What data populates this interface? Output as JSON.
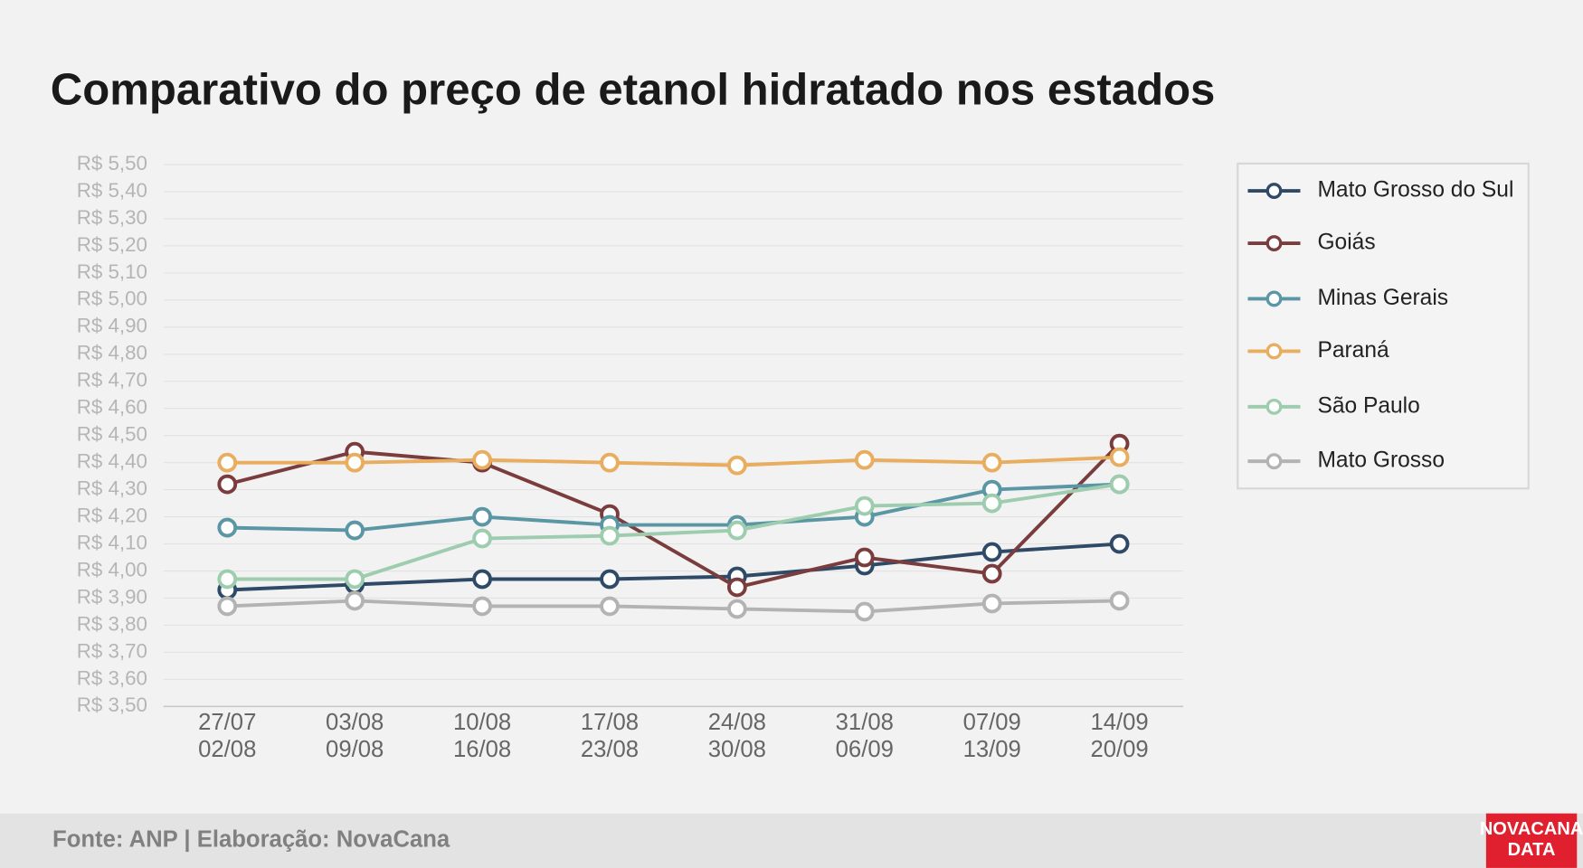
{
  "chart_data": {
    "type": "line",
    "title": "Comparativo do preço de etanol hidratado nos estados",
    "categories": [
      [
        "27/07",
        "02/08"
      ],
      [
        "03/08",
        "09/08"
      ],
      [
        "10/08",
        "16/08"
      ],
      [
        "17/08",
        "23/08"
      ],
      [
        "24/08",
        "30/08"
      ],
      [
        "31/08",
        "06/09"
      ],
      [
        "07/09",
        "13/09"
      ],
      [
        "14/09",
        "20/09"
      ]
    ],
    "series": [
      {
        "name": "Mato Grosso do Sul",
        "color": "#2f4a66",
        "values": [
          3.93,
          3.95,
          3.97,
          3.97,
          3.98,
          4.02,
          4.07,
          4.1
        ]
      },
      {
        "name": "Goiás",
        "color": "#7a3c3c",
        "values": [
          4.32,
          4.44,
          4.4,
          4.21,
          3.94,
          4.05,
          3.99,
          4.47
        ]
      },
      {
        "name": "Minas Gerais",
        "color": "#5b96a5",
        "values": [
          4.16,
          4.15,
          4.2,
          4.17,
          4.17,
          4.2,
          4.3,
          4.32
        ]
      },
      {
        "name": "Paraná",
        "color": "#e8ad5e",
        "values": [
          4.4,
          4.4,
          4.41,
          4.4,
          4.39,
          4.41,
          4.4,
          4.42
        ]
      },
      {
        "name": "São Paulo",
        "color": "#9dcdae",
        "values": [
          3.97,
          3.97,
          4.12,
          4.13,
          4.15,
          4.24,
          4.25,
          4.32
        ]
      },
      {
        "name": "Mato Grosso",
        "color": "#b3b3b3",
        "values": [
          3.87,
          3.89,
          3.87,
          3.87,
          3.86,
          3.85,
          3.88,
          3.89
        ]
      }
    ],
    "ylim": [
      3.5,
      5.5
    ],
    "yticks": [
      {
        "value": 3.5,
        "label": "R$ 3,50"
      },
      {
        "value": 3.6,
        "label": "R$ 3,60"
      },
      {
        "value": 3.7,
        "label": "R$ 3,70"
      },
      {
        "value": 3.8,
        "label": "R$ 3,80"
      },
      {
        "value": 3.9,
        "label": "R$ 3,90"
      },
      {
        "value": 4.0,
        "label": "R$ 4,00"
      },
      {
        "value": 4.1,
        "label": "R$ 4,10"
      },
      {
        "value": 4.2,
        "label": "R$ 4,20"
      },
      {
        "value": 4.3,
        "label": "R$ 4,30"
      },
      {
        "value": 4.4,
        "label": "R$ 4,40"
      },
      {
        "value": 4.5,
        "label": "R$ 4,50"
      },
      {
        "value": 4.6,
        "label": "R$ 4,60"
      },
      {
        "value": 4.7,
        "label": "R$ 4,70"
      },
      {
        "value": 4.8,
        "label": "R$ 4,80"
      },
      {
        "value": 4.9,
        "label": "R$ 4,90"
      },
      {
        "value": 5.0,
        "label": "R$ 5,00"
      },
      {
        "value": 5.1,
        "label": "R$ 5,10"
      },
      {
        "value": 5.2,
        "label": "R$ 5,20"
      },
      {
        "value": 5.3,
        "label": "R$ 5,30"
      },
      {
        "value": 5.4,
        "label": "R$ 5,40"
      },
      {
        "value": 5.5,
        "label": "R$ 5,50"
      }
    ],
    "grid": true,
    "legend": "right",
    "footer": "Fonte: ANP | Elaboração: NovaCana",
    "logo": [
      "NOVACANA",
      "DATA"
    ]
  }
}
